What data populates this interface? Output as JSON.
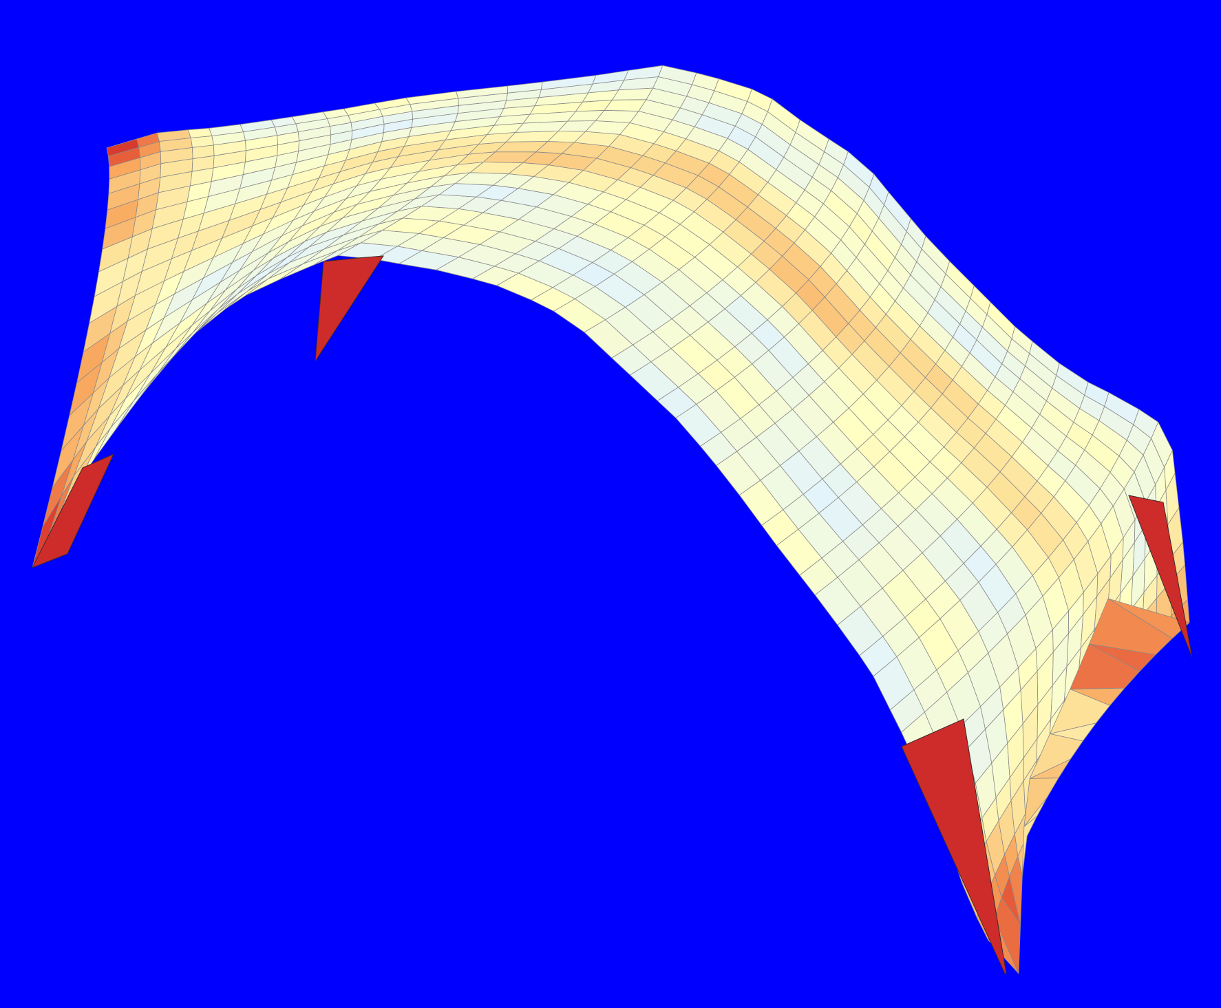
{
  "scene": {
    "subject": "shell-surface-mesh",
    "background_color": "#0000FF",
    "mesh_line_color": "#8a8a8a",
    "colormap": [
      "#4f8fc4",
      "#a9d6e8",
      "#e4f4fa",
      "#ffffc4",
      "#fde29a",
      "#f9a65c",
      "#e24a32",
      "#b80f25"
    ],
    "mesh": {
      "rows": 17,
      "cols": 46
    },
    "supports": [
      "front-left",
      "back-left",
      "back-right",
      "front-right"
    ]
  }
}
